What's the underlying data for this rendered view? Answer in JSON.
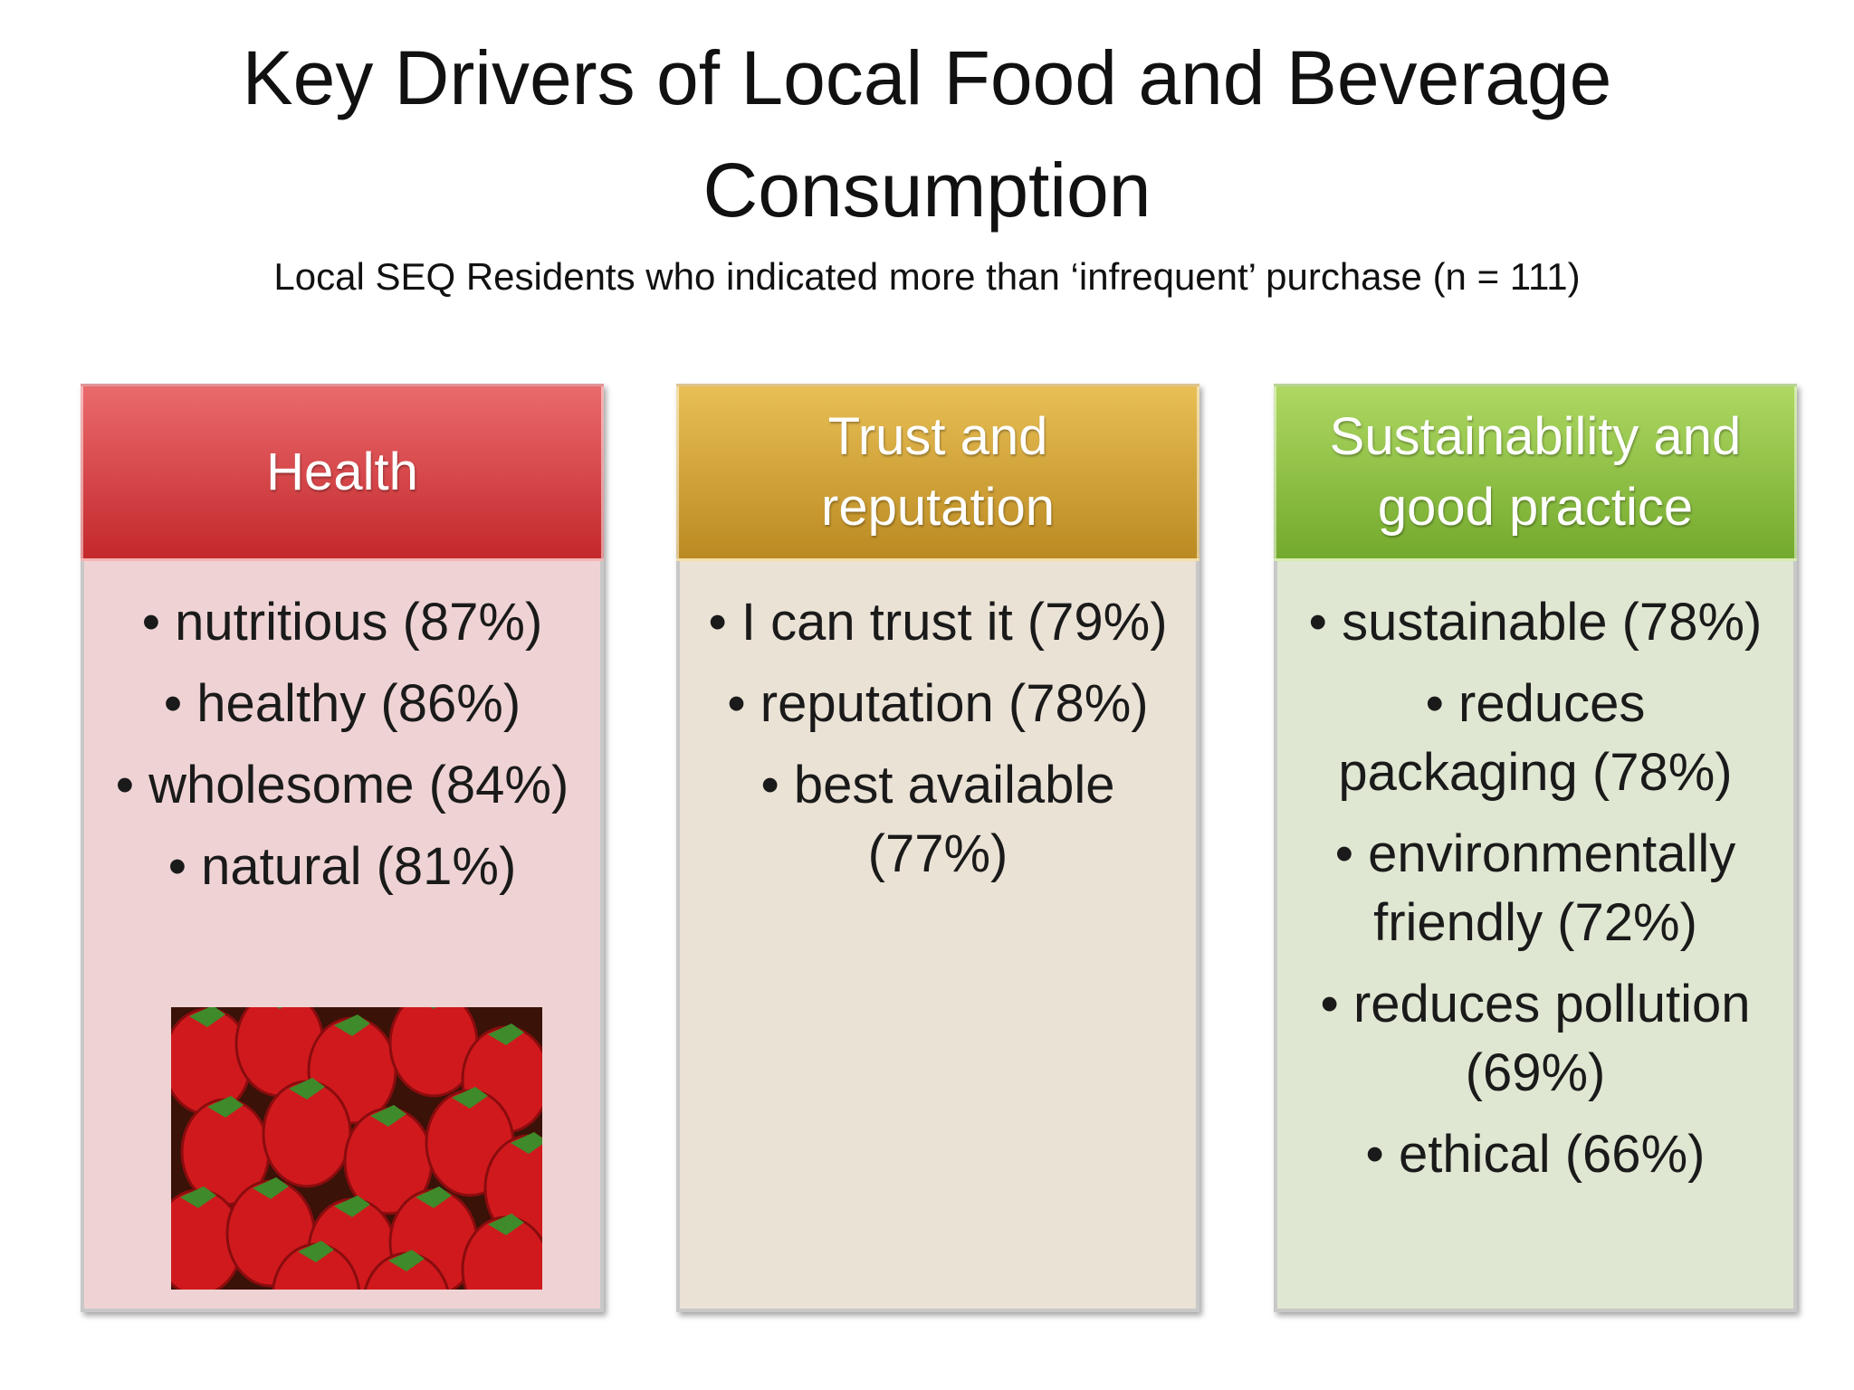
{
  "header": {
    "title_lines": [
      "Key Drivers of Local Food and Beverage",
      "Consumption"
    ],
    "subtitle": "Local SEQ Residents who indicated more than ‘infrequent’ purchase (n = 111)"
  },
  "columns": [
    {
      "heading": "Health",
      "items": [
        "nutritious (87%)",
        "healthy (86%)",
        "wholesome (84%)",
        "natural (81%)"
      ]
    },
    {
      "heading": "Trust and reputation",
      "items": [
        "I can trust it (79%)",
        "reputation (78%)",
        "best available (77%)"
      ]
    },
    {
      "heading": "Sustainability and good practice",
      "items": [
        "sustainable (78%)",
        "reduces packaging (78%)",
        "environmentally friendly (72%)",
        "reduces pollution (69%)",
        "ethical (66%)"
      ]
    }
  ]
}
